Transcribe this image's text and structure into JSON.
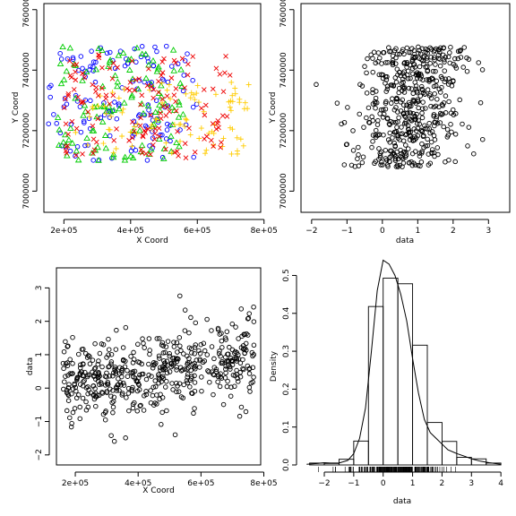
{
  "chart_data": [
    {
      "panel": "top-left",
      "type": "scatter",
      "xlabel": "X Coord",
      "ylabel": "Y Coord",
      "xlim": [
        140000,
        790000
      ],
      "ylim": [
        6930000,
        7620000
      ],
      "xticks": [
        200000,
        400000,
        600000,
        800000
      ],
      "xtick_labels": [
        "2e+05",
        "4e+05",
        "6e+05",
        "8e+05"
      ],
      "yticks": [
        7000000,
        7200000,
        7400000,
        7600000
      ],
      "ytick_labels": [
        "7000000",
        "7200000",
        "7400000",
        "7600000"
      ],
      "ylabel_rotated": true,
      "series": [
        {
          "marker": "circle",
          "color": "#0000ff",
          "region": {
            "x": [
              150000,
              600000
            ],
            "y": [
              7100000,
              7480000
            ]
          },
          "points": 140
        },
        {
          "marker": "triangle",
          "color": "#00cc00",
          "region": {
            "x": [
              180000,
              560000
            ],
            "y": [
              7100000,
              7480000
            ]
          },
          "points": 120
        },
        {
          "marker": "plus",
          "color": "#ffcc00",
          "region": {
            "x": [
              230000,
              760000
            ],
            "y": [
              7120000,
              7360000
            ]
          },
          "points": 90
        },
        {
          "marker": "cross",
          "color": "#ee0000",
          "region": {
            "x": [
              200000,
              700000
            ],
            "y": [
              7110000,
              7460000
            ]
          },
          "points": 150
        }
      ]
    },
    {
      "panel": "top-right",
      "type": "scatter",
      "xlabel": "data",
      "ylabel": "Y Coord",
      "xlim": [
        -2.3,
        3.6
      ],
      "ylim": [
        6930000,
        7620000
      ],
      "xticks": [
        -2,
        -1,
        0,
        1,
        2,
        3
      ],
      "xtick_labels": [
        "−2",
        "−1",
        "0",
        "1",
        "2",
        "3"
      ],
      "yticks": [
        7000000,
        7200000,
        7400000,
        7600000
      ],
      "ytick_labels": [
        "7000000",
        "7200000",
        "7400000",
        "7600000"
      ],
      "marker": "open-circle",
      "points": 520
    },
    {
      "panel": "bottom-left",
      "type": "scatter",
      "xlabel": "X Coord",
      "ylabel": "data",
      "xlim": [
        140000,
        790000
      ],
      "ylim": [
        -2.3,
        3.6
      ],
      "xticks": [
        200000,
        400000,
        600000,
        800000
      ],
      "xtick_labels": [
        "2e+05",
        "4e+05",
        "6e+05",
        "8e+05"
      ],
      "yticks": [
        -2,
        -1,
        0,
        1,
        2,
        3
      ],
      "ytick_labels": [
        "−2",
        "−1",
        "0",
        "1",
        "2",
        "3"
      ],
      "marker": "open-circle",
      "points": 520
    },
    {
      "panel": "bottom-right",
      "type": "bar",
      "subtype": "histogram with density curve and rug",
      "xlabel": "data",
      "ylabel": "Density",
      "xlim": [
        -2.7,
        4.3
      ],
      "ylim": [
        0,
        0.52
      ],
      "xticks": [
        -2,
        -1,
        0,
        1,
        2,
        3,
        4
      ],
      "xtick_labels": [
        "−2",
        "−1",
        "0",
        "1",
        "2",
        "3",
        "4"
      ],
      "yticks": [
        0.0,
        0.1,
        0.2,
        0.3,
        0.4,
        0.5
      ],
      "ytick_labels": [
        "0.0",
        "0.1",
        "0.2",
        "0.3",
        "0.4",
        "0.5"
      ],
      "bin_edges": [
        -2.5,
        -2.0,
        -1.5,
        -1.0,
        -0.5,
        0.0,
        0.5,
        1.0,
        1.5,
        2.0,
        2.5,
        3.0,
        3.5,
        4.0
      ],
      "values": [
        0.005,
        0.004,
        0.015,
        0.063,
        0.418,
        0.493,
        0.478,
        0.316,
        0.112,
        0.062,
        0.02,
        0.016,
        0.005
      ],
      "density_x": [
        -2.6,
        -2.2,
        -2.0,
        -1.8,
        -1.5,
        -1.2,
        -1.0,
        -0.8,
        -0.6,
        -0.4,
        -0.2,
        0.0,
        0.2,
        0.4,
        0.6,
        0.8,
        1.0,
        1.2,
        1.4,
        1.6,
        1.8,
        2.0,
        2.2,
        2.5,
        2.8,
        3.0,
        3.3,
        3.6,
        4.0
      ],
      "density_y": [
        0.002,
        0.004,
        0.006,
        0.005,
        0.005,
        0.012,
        0.03,
        0.07,
        0.15,
        0.3,
        0.46,
        0.54,
        0.53,
        0.5,
        0.45,
        0.38,
        0.28,
        0.19,
        0.12,
        0.085,
        0.07,
        0.055,
        0.04,
        0.03,
        0.022,
        0.016,
        0.01,
        0.006,
        0.002
      ]
    }
  ]
}
